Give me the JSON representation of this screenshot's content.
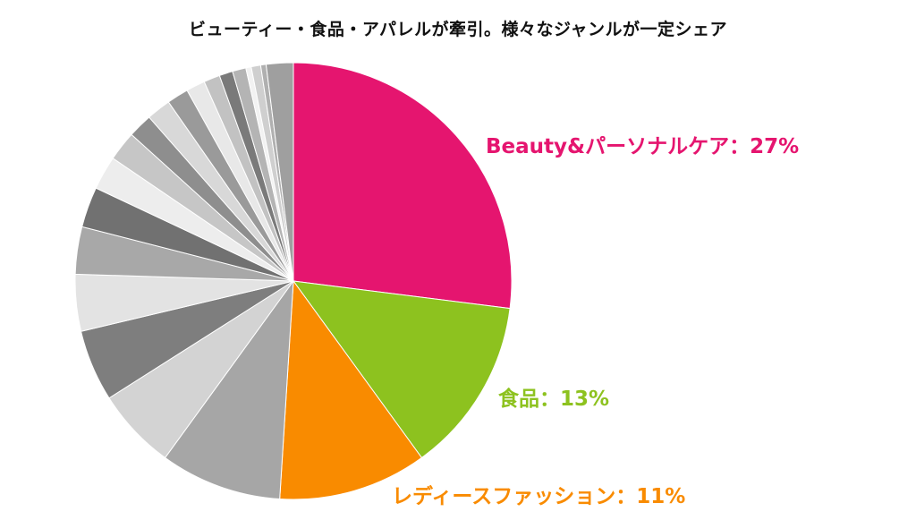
{
  "chart_data": {
    "type": "pie",
    "title": "ビューティー・食品・アパレルが牽引。様々なジャンルが一定シェア",
    "start_angle_deg": 0,
    "direction": "clockwise",
    "slices": [
      {
        "label": "Beauty&パーソナルケア",
        "value": 27,
        "color": "#E5156F",
        "callout": "Beauty&パーソナルケア：27%"
      },
      {
        "label": "食品",
        "value": 13,
        "color": "#8DC21F",
        "callout": "食品：13%"
      },
      {
        "label": "レディースファッション",
        "value": 11,
        "color": "#F98B00",
        "callout": "レディースファッション：11%"
      },
      {
        "label": "",
        "value": 9,
        "color": "#A6A6A6"
      },
      {
        "label": "",
        "value": 6,
        "color": "#D3D3D3"
      },
      {
        "label": "",
        "value": 5.3,
        "color": "#7E7E7E"
      },
      {
        "label": "",
        "value": 4.2,
        "color": "#E3E3E3"
      },
      {
        "label": "",
        "value": 3.5,
        "color": "#A8A8A8"
      },
      {
        "label": "",
        "value": 3.0,
        "color": "#717171"
      },
      {
        "label": "",
        "value": 2.5,
        "color": "#EDEDED"
      },
      {
        "label": "",
        "value": 2.2,
        "color": "#C6C6C6"
      },
      {
        "label": "",
        "value": 1.8,
        "color": "#8E8E8E"
      },
      {
        "label": "",
        "value": 1.8,
        "color": "#D8D8D8"
      },
      {
        "label": "",
        "value": 1.6,
        "color": "#9A9A9A"
      },
      {
        "label": "",
        "value": 1.4,
        "color": "#E8E8E8"
      },
      {
        "label": "",
        "value": 1.2,
        "color": "#C2C2C2"
      },
      {
        "label": "",
        "value": 1.0,
        "color": "#7A7A7A"
      },
      {
        "label": "",
        "value": 1.0,
        "color": "#B4B4B4"
      },
      {
        "label": "",
        "value": 0.4,
        "color": "#F2F2F2"
      },
      {
        "label": "",
        "value": 0.7,
        "color": "#CFCFCF"
      },
      {
        "label": "",
        "value": 0.4,
        "color": "#B0B0B0"
      },
      {
        "label": "",
        "value": 2.0,
        "color": "#9F9F9F"
      }
    ],
    "legend": "none",
    "grid": false
  }
}
